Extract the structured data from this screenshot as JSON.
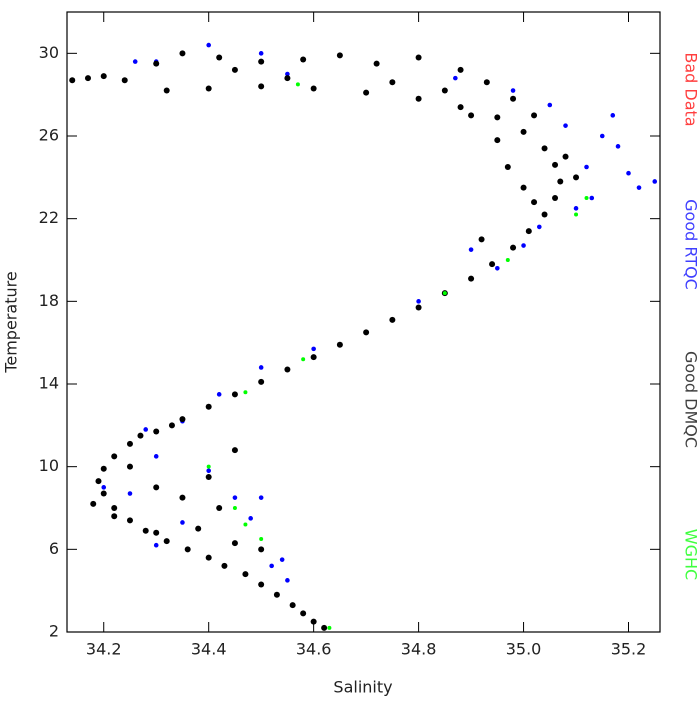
{
  "chart_data": {
    "type": "scatter",
    "x_label": "Salinity",
    "y_label": "Temperature",
    "xlim": [
      34.13,
      35.26
    ],
    "ylim": [
      2,
      32
    ],
    "xticks": [
      34.2,
      34.4,
      34.6,
      34.8,
      {
        "value": 35,
        "label": "35.0"
      },
      35.2
    ],
    "yticks": [
      2,
      6,
      10,
      14,
      18,
      22,
      26,
      30
    ],
    "legend_position": "right",
    "series": [
      {
        "name": "Bad Data",
        "color": "#ff0000",
        "x": [],
        "y": []
      },
      {
        "name": "Good RTQC",
        "color": "#0000ff",
        "x": [
          34.3,
          34.26,
          34.4,
          34.5,
          34.55,
          35.18,
          35.2,
          35.22,
          35.25,
          35.15,
          35.12,
          35.1,
          35.13,
          35.08,
          35.05,
          34.98,
          35.0,
          34.95,
          34.9,
          34.8,
          34.6,
          34.5,
          34.42,
          34.35,
          34.28,
          34.25,
          34.3,
          34.4,
          34.45,
          34.48,
          34.5,
          34.52,
          34.55,
          34.54,
          34.35,
          34.3,
          34.2,
          35.17,
          35.03,
          34.87
        ],
        "y": [
          29.6,
          29.6,
          30.4,
          30.0,
          29.0,
          25.5,
          24.2,
          23.5,
          23.8,
          26.0,
          24.5,
          22.5,
          23.0,
          26.5,
          27.5,
          28.2,
          20.7,
          19.6,
          20.5,
          18.0,
          15.7,
          14.8,
          13.5,
          12.2,
          11.8,
          8.7,
          10.5,
          9.8,
          8.5,
          7.5,
          8.5,
          5.2,
          4.5,
          5.5,
          7.3,
          6.2,
          9.0,
          27.0,
          21.6,
          28.8
        ]
      },
      {
        "name": "Good DMQC",
        "color": "#000000",
        "x": [
          34.62,
          34.6,
          34.58,
          34.56,
          34.53,
          34.5,
          34.47,
          34.43,
          34.4,
          34.36,
          34.32,
          34.28,
          34.25,
          34.22,
          34.2,
          34.19,
          34.2,
          34.22,
          34.25,
          34.3,
          34.35,
          34.4,
          34.45,
          34.5,
          34.55,
          34.6,
          34.65,
          34.7,
          34.75,
          34.8,
          34.85,
          34.9,
          34.94,
          34.98,
          35.01,
          35.04,
          35.06,
          35.07,
          35.06,
          35.04,
          35.0,
          34.95,
          34.88,
          34.8,
          34.7,
          34.6,
          34.5,
          34.4,
          34.32,
          34.3,
          34.35,
          34.42,
          34.5,
          34.58,
          34.65,
          34.72,
          34.8,
          34.88,
          34.93,
          34.98,
          35.02,
          34.14,
          34.17,
          34.2,
          34.24,
          34.25,
          34.3,
          34.22,
          34.35,
          34.4,
          34.45,
          34.42,
          34.38,
          34.3,
          34.45,
          34.5,
          34.27,
          34.33,
          34.18,
          34.92,
          35.0,
          35.08,
          34.97,
          35.02,
          34.95,
          35.1,
          34.9,
          34.75,
          34.55,
          34.45,
          34.85
        ],
        "y": [
          2.2,
          2.5,
          2.9,
          3.3,
          3.8,
          4.3,
          4.8,
          5.2,
          5.6,
          6.0,
          6.4,
          6.9,
          7.4,
          8.0,
          8.7,
          9.3,
          9.9,
          10.5,
          11.1,
          11.7,
          12.3,
          12.9,
          13.5,
          14.1,
          14.7,
          15.3,
          15.9,
          16.5,
          17.1,
          17.7,
          18.4,
          19.1,
          19.8,
          20.6,
          21.4,
          22.2,
          23.0,
          23.8,
          24.6,
          25.4,
          26.2,
          26.9,
          27.4,
          27.8,
          28.1,
          28.3,
          28.4,
          28.3,
          28.2,
          29.5,
          30.0,
          29.8,
          29.6,
          29.7,
          29.9,
          29.5,
          29.8,
          29.2,
          28.6,
          27.8,
          27.0,
          28.7,
          28.8,
          28.9,
          28.7,
          10.0,
          9.0,
          7.6,
          8.5,
          9.5,
          10.8,
          8.0,
          7.0,
          6.8,
          6.3,
          6.0,
          11.5,
          12.0,
          8.2,
          21.0,
          23.5,
          25.0,
          24.5,
          22.8,
          25.8,
          24.0,
          27.0,
          28.6,
          28.8,
          29.2,
          28.2
        ]
      },
      {
        "name": "WGHC",
        "color": "#00ff00",
        "x": [
          34.63,
          34.57,
          34.97,
          35.1,
          35.12,
          34.85,
          34.58,
          34.47,
          34.4,
          34.45,
          34.47,
          34.5
        ],
        "y": [
          2.2,
          28.5,
          20.0,
          22.2,
          23.0,
          18.4,
          15.2,
          13.6,
          10.0,
          8.0,
          7.2,
          6.5
        ]
      }
    ]
  }
}
